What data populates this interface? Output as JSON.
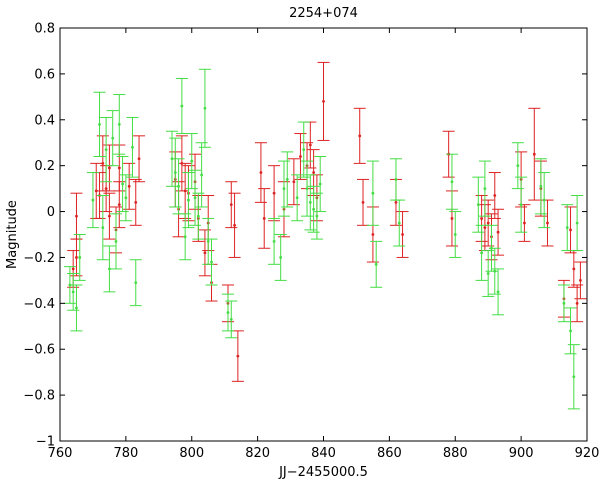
{
  "chart_data": {
    "type": "scatter",
    "title": "2254+074",
    "xlabel": "JJ−2455000.5",
    "ylabel": "Magnitude",
    "xlim": [
      760,
      920
    ],
    "ylim": [
      -1,
      0.8
    ],
    "xticks": [
      760,
      780,
      800,
      820,
      840,
      860,
      880,
      900,
      920
    ],
    "xtick_labels": [
      "760",
      "780",
      "800",
      "820",
      "840",
      "860",
      "880",
      "900",
      "920"
    ],
    "yticks": [
      -1,
      -0.8,
      -0.6,
      -0.4,
      -0.2,
      0,
      0.2,
      0.4,
      0.6,
      0.8
    ],
    "ytick_labels": [
      "−1",
      "−0.8",
      "−0.6",
      "−0.4",
      "−0.2",
      "0",
      "0.2",
      "0.4",
      "0.6",
      "0.8"
    ],
    "grid": false,
    "error_bars": true,
    "series": [
      {
        "color": "#dd2222",
        "points": [
          {
            "x": 764,
            "y": -0.25,
            "err": 0.08
          },
          {
            "x": 765,
            "y": -0.2,
            "err": 0.08
          },
          {
            "x": 765,
            "y": -0.02,
            "err": 0.1
          },
          {
            "x": 771,
            "y": 0.09,
            "err": 0.12
          },
          {
            "x": 772,
            "y": 0.07,
            "err": 0.1
          },
          {
            "x": 773,
            "y": 0.21,
            "err": 0.12
          },
          {
            "x": 774,
            "y": 0.1,
            "err": 0.1
          },
          {
            "x": 775,
            "y": -0.02,
            "err": 0.1
          },
          {
            "x": 775,
            "y": 0.19,
            "err": 0.1
          },
          {
            "x": 777,
            "y": -0.08,
            "err": 0.1
          },
          {
            "x": 778,
            "y": 0.03,
            "err": 0.1
          },
          {
            "x": 778,
            "y": 0.19,
            "err": 0.1
          },
          {
            "x": 781,
            "y": 0.11,
            "err": 0.1
          },
          {
            "x": 783,
            "y": 0.04,
            "err": 0.1
          },
          {
            "x": 784,
            "y": 0.23,
            "err": 0.1
          },
          {
            "x": 795,
            "y": 0.14,
            "err": 0.12
          },
          {
            "x": 796,
            "y": 0.01,
            "err": 0.12
          },
          {
            "x": 797,
            "y": 0.21,
            "err": 0.12
          },
          {
            "x": 798,
            "y": 0.09,
            "err": 0.12
          },
          {
            "x": 799,
            "y": 0.08,
            "err": 0.12
          },
          {
            "x": 801,
            "y": 0.13,
            "err": 0.12
          },
          {
            "x": 802,
            "y": -0.03,
            "err": 0.1
          },
          {
            "x": 804,
            "y": -0.18,
            "err": 0.1
          },
          {
            "x": 805,
            "y": -0.05,
            "err": 0.12
          },
          {
            "x": 806,
            "y": -0.31,
            "err": 0.08
          },
          {
            "x": 811,
            "y": -0.4,
            "err": 0.08
          },
          {
            "x": 812,
            "y": 0.03,
            "err": 0.1
          },
          {
            "x": 813,
            "y": -0.06,
            "err": 0.14
          },
          {
            "x": 814,
            "y": -0.63,
            "err": 0.11
          },
          {
            "x": 821,
            "y": 0.17,
            "err": 0.13
          },
          {
            "x": 822,
            "y": -0.03,
            "err": 0.13
          },
          {
            "x": 825,
            "y": 0.08,
            "err": 0.12
          },
          {
            "x": 828,
            "y": 0.01,
            "err": 0.12
          },
          {
            "x": 831,
            "y": 0.13,
            "err": 0.1
          },
          {
            "x": 833,
            "y": 0.24,
            "err": 0.1
          },
          {
            "x": 835,
            "y": 0.2,
            "err": 0.1
          },
          {
            "x": 836,
            "y": 0.29,
            "err": 0.1
          },
          {
            "x": 837,
            "y": 0.17,
            "err": 0.1
          },
          {
            "x": 838,
            "y": 0.06,
            "err": 0.1
          },
          {
            "x": 840,
            "y": 0.48,
            "err": 0.17
          },
          {
            "x": 851,
            "y": 0.33,
            "err": 0.12
          },
          {
            "x": 852,
            "y": 0.04,
            "err": 0.1
          },
          {
            "x": 855,
            "y": -0.1,
            "err": 0.12
          },
          {
            "x": 862,
            "y": 0.04,
            "err": 0.1
          },
          {
            "x": 864,
            "y": -0.1,
            "err": 0.1
          },
          {
            "x": 878,
            "y": 0.25,
            "err": 0.1
          },
          {
            "x": 879,
            "y": -0.03,
            "err": 0.12
          },
          {
            "x": 888,
            "y": -0.03,
            "err": 0.1
          },
          {
            "x": 889,
            "y": -0.07,
            "err": 0.1
          },
          {
            "x": 890,
            "y": -0.05,
            "err": 0.1
          },
          {
            "x": 891,
            "y": -0.11,
            "err": 0.1
          },
          {
            "x": 892,
            "y": 0.07,
            "err": 0.1
          },
          {
            "x": 893,
            "y": -0.09,
            "err": 0.1
          },
          {
            "x": 900,
            "y": 0.14,
            "err": 0.12
          },
          {
            "x": 901,
            "y": -0.05,
            "err": 0.08
          },
          {
            "x": 904,
            "y": 0.25,
            "err": 0.2
          },
          {
            "x": 906,
            "y": 0.1,
            "err": 0.12
          },
          {
            "x": 908,
            "y": -0.05,
            "err": 0.1
          },
          {
            "x": 913,
            "y": -0.38,
            "err": 0.08
          },
          {
            "x": 915,
            "y": -0.08,
            "err": 0.1
          },
          {
            "x": 916,
            "y": -0.25,
            "err": 0.08
          },
          {
            "x": 917,
            "y": -0.4,
            "err": 0.08
          },
          {
            "x": 918,
            "y": -0.3,
            "err": 0.08
          }
        ]
      },
      {
        "color": "#44dd44",
        "points": [
          {
            "x": 763,
            "y": -0.32,
            "err": 0.08
          },
          {
            "x": 764,
            "y": -0.35,
            "err": 0.08
          },
          {
            "x": 765,
            "y": -0.42,
            "err": 0.1
          },
          {
            "x": 766,
            "y": -0.2,
            "err": 0.1
          },
          {
            "x": 770,
            "y": 0.05,
            "err": 0.12
          },
          {
            "x": 772,
            "y": 0.38,
            "err": 0.14
          },
          {
            "x": 773,
            "y": -0.07,
            "err": 0.14
          },
          {
            "x": 774,
            "y": 0.27,
            "err": 0.14
          },
          {
            "x": 775,
            "y": -0.25,
            "err": 0.1
          },
          {
            "x": 776,
            "y": 0.32,
            "err": 0.12
          },
          {
            "x": 777,
            "y": -0.13,
            "err": 0.12
          },
          {
            "x": 778,
            "y": 0.38,
            "err": 0.13
          },
          {
            "x": 779,
            "y": 0.12,
            "err": 0.12
          },
          {
            "x": 780,
            "y": 0.06,
            "err": 0.1
          },
          {
            "x": 782,
            "y": 0.28,
            "err": 0.13
          },
          {
            "x": 783,
            "y": -0.31,
            "err": 0.1
          },
          {
            "x": 794,
            "y": 0.23,
            "err": 0.12
          },
          {
            "x": 795,
            "y": 0.17,
            "err": 0.15
          },
          {
            "x": 796,
            "y": 0.11,
            "err": 0.12
          },
          {
            "x": 797,
            "y": 0.46,
            "err": 0.12
          },
          {
            "x": 798,
            "y": -0.11,
            "err": 0.1
          },
          {
            "x": 799,
            "y": 0.05,
            "err": 0.12
          },
          {
            "x": 800,
            "y": 0.22,
            "err": 0.12
          },
          {
            "x": 801,
            "y": 0.06,
            "err": 0.12
          },
          {
            "x": 802,
            "y": -0.02,
            "err": 0.1
          },
          {
            "x": 803,
            "y": 0.16,
            "err": 0.14
          },
          {
            "x": 804,
            "y": 0.45,
            "err": 0.17
          },
          {
            "x": 805,
            "y": -0.13,
            "err": 0.1
          },
          {
            "x": 806,
            "y": -0.22,
            "err": 0.1
          },
          {
            "x": 811,
            "y": -0.44,
            "err": 0.08
          },
          {
            "x": 812,
            "y": -0.47,
            "err": 0.08
          },
          {
            "x": 825,
            "y": -0.13,
            "err": 0.1
          },
          {
            "x": 827,
            "y": -0.2,
            "err": 0.1
          },
          {
            "x": 828,
            "y": 0.1,
            "err": 0.12
          },
          {
            "x": 829,
            "y": 0.14,
            "err": 0.12
          },
          {
            "x": 832,
            "y": 0.06,
            "err": 0.1
          },
          {
            "x": 834,
            "y": 0.27,
            "err": 0.12
          },
          {
            "x": 835,
            "y": 0.1,
            "err": 0.12
          },
          {
            "x": 836,
            "y": 0.04,
            "err": 0.12
          },
          {
            "x": 837,
            "y": 0.01,
            "err": 0.1
          },
          {
            "x": 838,
            "y": -0.02,
            "err": 0.1
          },
          {
            "x": 839,
            "y": 0.12,
            "err": 0.12
          },
          {
            "x": 855,
            "y": 0.08,
            "err": 0.14
          },
          {
            "x": 856,
            "y": -0.23,
            "err": 0.1
          },
          {
            "x": 862,
            "y": 0.14,
            "err": 0.09
          },
          {
            "x": 863,
            "y": -0.05,
            "err": 0.1
          },
          {
            "x": 879,
            "y": 0.13,
            "err": 0.12
          },
          {
            "x": 880,
            "y": -0.1,
            "err": 0.1
          },
          {
            "x": 887,
            "y": 0.03,
            "err": 0.12
          },
          {
            "x": 888,
            "y": -0.18,
            "err": 0.12
          },
          {
            "x": 889,
            "y": 0.1,
            "err": 0.12
          },
          {
            "x": 890,
            "y": -0.27,
            "err": 0.1
          },
          {
            "x": 891,
            "y": -0.16,
            "err": 0.1
          },
          {
            "x": 892,
            "y": -0.26,
            "err": 0.1
          },
          {
            "x": 893,
            "y": -0.35,
            "err": 0.1
          },
          {
            "x": 899,
            "y": 0.2,
            "err": 0.1
          },
          {
            "x": 900,
            "y": 0.03,
            "err": 0.12
          },
          {
            "x": 906,
            "y": 0.11,
            "err": 0.12
          },
          {
            "x": 907,
            "y": 0.05,
            "err": 0.12
          },
          {
            "x": 913,
            "y": -0.4,
            "err": 0.08
          },
          {
            "x": 914,
            "y": -0.07,
            "err": 0.1
          },
          {
            "x": 915,
            "y": -0.52,
            "err": 0.1
          },
          {
            "x": 916,
            "y": -0.72,
            "err": 0.14
          },
          {
            "x": 917,
            "y": -0.05,
            "err": 0.12
          }
        ]
      }
    ]
  }
}
